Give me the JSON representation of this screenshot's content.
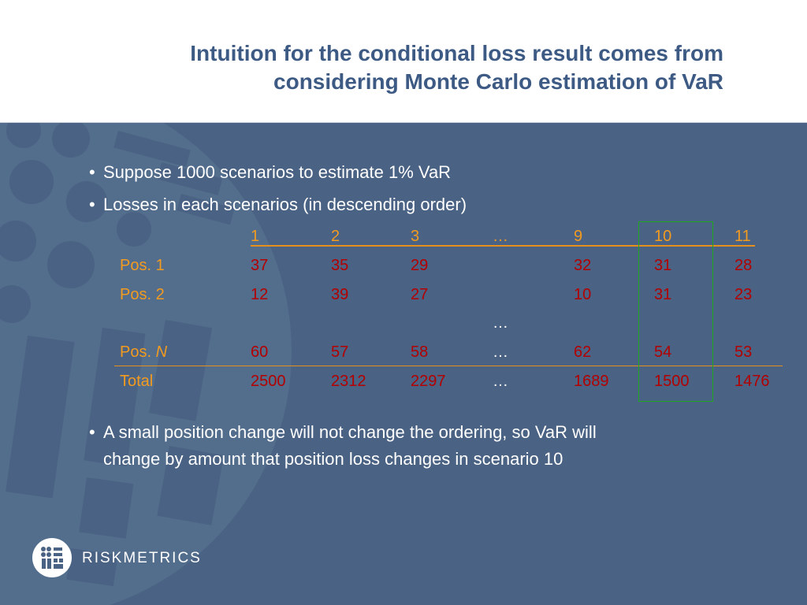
{
  "slide": {
    "title_line1": "Intuition for the conditional loss result comes from",
    "title_line2": "considering Monte Carlo estimation of VaR"
  },
  "bullets": [
    "Suppose 1000 scenarios to estimate 1% VaR",
    "Losses in each scenarios (in descending order)",
    "A small position change will not change the ordering, so VaR will",
    "change by amount that position loss changes in scenario 10"
  ],
  "bullet_char": "•",
  "table": {
    "columns": [
      "1",
      "2",
      "3",
      "…",
      "9",
      "10",
      "11"
    ],
    "rows": [
      {
        "label": "Pos. 1",
        "values": [
          "37",
          "35",
          "29",
          "",
          "32",
          "31",
          "28"
        ]
      },
      {
        "label": "Pos. 2",
        "values": [
          "12",
          "39",
          "27",
          "",
          "10",
          "31",
          "23"
        ]
      },
      {
        "label": "",
        "values": [
          "",
          "",
          "",
          "…",
          "",
          "",
          ""
        ]
      },
      {
        "label_prefix": "Pos. ",
        "label_italic": "N",
        "values": [
          "60",
          "57",
          "58",
          "…",
          "62",
          "54",
          "53"
        ]
      },
      {
        "label": "Total",
        "values": [
          "2500",
          "2312",
          "2297",
          "…",
          "1689",
          "1500",
          "1476"
        ]
      }
    ],
    "highlighted_column": "10",
    "colors": {
      "header": "#f39b1f",
      "values": "#b30000",
      "highlight_box": "#1ea81e"
    }
  },
  "logo": {
    "text": "RISKMETRICS",
    "icon": "riskmetrics-logo-icon"
  },
  "colors": {
    "title": "#3d5a84",
    "background": "#4a6283",
    "header_bg": "#ffffff"
  }
}
